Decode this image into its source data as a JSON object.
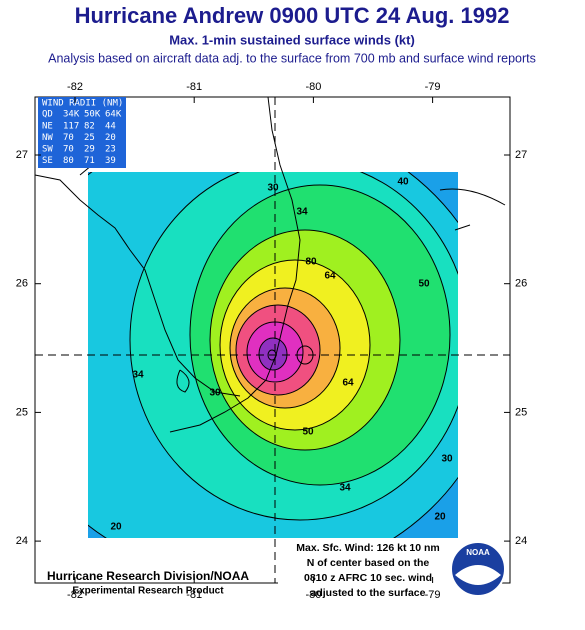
{
  "header": {
    "title": "Hurricane Andrew 0900 UTC 24 Aug. 1992",
    "subtitle": "Max. 1-min sustained surface winds (kt)",
    "description": "Analysis based on aircraft data adj. to the surface from 700 mb and surface wind reports"
  },
  "axes": {
    "longitudes": [
      -82,
      -81,
      -80,
      -79
    ],
    "latitudes": [
      27,
      26,
      25,
      24
    ]
  },
  "wind_radii": {
    "title": "WIND RADII (NM)",
    "columns": [
      "QD",
      "34K",
      "50K",
      "64K"
    ],
    "rows": [
      [
        "NE",
        "117",
        "82",
        "44"
      ],
      [
        "NW",
        "70",
        "25",
        "20"
      ],
      [
        "SW",
        "70",
        "29",
        "23"
      ],
      [
        "SE",
        "80",
        "71",
        "39"
      ]
    ]
  },
  "contour_labels": [
    30,
    34,
    40,
    80,
    50,
    64,
    64,
    34,
    50,
    30,
    34,
    30,
    20,
    20
  ],
  "max_wind_note": [
    "Max. Sfc. Wind: 126 kt 10 nm",
    "N of center based on the",
    "0810 z AFRC 10 sec. wind",
    "adjusted to the surface"
  ],
  "credits": {
    "organization": "Hurricane Research Division/NOAA",
    "product": "Experimental Research Product",
    "logo": "NOAA"
  }
}
